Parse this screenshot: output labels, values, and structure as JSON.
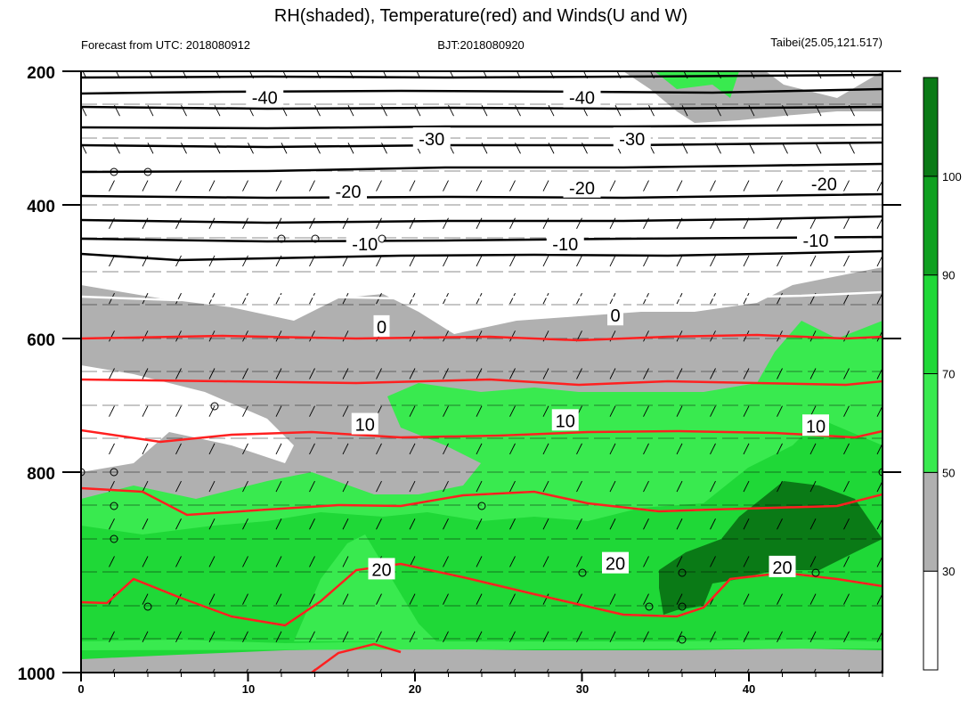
{
  "chart_data": {
    "type": "heatmap",
    "title": "RH(shaded), Temperature(red) and Winds(U and W)",
    "left_string": "Forecast from UTC: 2018080912",
    "center_string": "BJT:2018080920",
    "right_string": "Taibei(25.05,121.517)",
    "x_axis": {
      "range": [
        0,
        48
      ],
      "ticks": [
        0,
        10,
        20,
        30,
        40
      ],
      "tick_labels": [
        "0",
        "10",
        "20",
        "30",
        "40"
      ]
    },
    "y_axis": {
      "range": [
        200,
        1000
      ],
      "reversed": true,
      "pressure_levels": [
        200,
        250,
        300,
        350,
        400,
        450,
        500,
        550,
        600,
        650,
        700,
        750,
        800,
        850,
        900,
        950,
        1000
      ],
      "ticks": [
        200,
        400,
        600,
        800,
        1000
      ],
      "tick_labels": [
        "200",
        "400",
        "600",
        "800",
        "1000"
      ]
    },
    "colorbar": {
      "levels": [
        30,
        50,
        70,
        90,
        100
      ],
      "level_labels": [
        "30",
        "50",
        "70",
        "90",
        "100"
      ],
      "colors": [
        "#ffffff",
        "#b0b0b0",
        "#39ea4f",
        "#1fd837",
        "#0fa020",
        "#0a7a16"
      ]
    },
    "temperature_contours": [
      {
        "value": -40,
        "label": "-40",
        "color": "#000000",
        "label_positions": [
          [
            11,
            235
          ],
          [
            30,
            235
          ]
        ]
      },
      {
        "value": -30,
        "label": "-30",
        "color": "#000000",
        "label_positions": [
          [
            21,
            290
          ],
          [
            33,
            290
          ]
        ]
      },
      {
        "value": -20,
        "label": "-20",
        "color": "#000000",
        "label_positions": [
          [
            16,
            360
          ],
          [
            30,
            355
          ],
          [
            44.5,
            350
          ]
        ]
      },
      {
        "value": -10,
        "label": "-10",
        "color": "#000000",
        "label_positions": [
          [
            17,
            430
          ],
          [
            29,
            430
          ],
          [
            44,
            425
          ]
        ]
      },
      {
        "value": 0,
        "label": "0",
        "color": "#ffffff",
        "label_positions": [
          [
            18,
            540
          ],
          [
            32,
            525
          ]
        ]
      },
      {
        "value": 10,
        "label": "10",
        "color": "#ff2020",
        "label_positions": [
          [
            17,
            670
          ],
          [
            29,
            665
          ],
          [
            44,
            672
          ]
        ]
      },
      {
        "value": 20,
        "label": "20",
        "color": "#ff2020",
        "label_positions": [
          [
            18,
            863
          ],
          [
            32,
            855
          ],
          [
            42,
            860
          ]
        ]
      }
    ],
    "rh_labels_visible": true
  }
}
